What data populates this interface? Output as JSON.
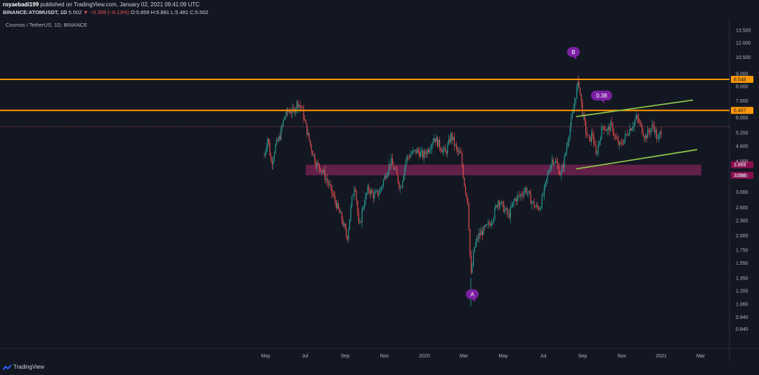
{
  "header": {
    "author": "royaebadi199",
    "published_text": "published on TradingView.com, January 02, 2021 09:41:09 UTC",
    "symbol": "BINANCE:ATOMUSDT, 1D",
    "last": "5.502",
    "change": "−0.359 (−6.13%)",
    "ohlc_o": "O:5.859",
    "ohlc_h": "H:5.881",
    "ohlc_l": "L:5.481",
    "ohlc_c": "C:5.502"
  },
  "chart_title": "Cosmos / TetherUS, 1D, BINANCE",
  "footer": {
    "brand": "TradingView"
  },
  "colors": {
    "background": "#131722",
    "up": "#26a69a",
    "down": "#ef5350",
    "resistance": "#ff9800",
    "zone": "#7e2456",
    "trend": "#8bc34a",
    "marker": "#7b1fa2"
  },
  "chart_data": {
    "type": "candlestick",
    "y_scale": "log",
    "ylim": [
      0.78,
      14.5
    ],
    "y_ticks": [
      "13.500",
      "12.000",
      "10.500",
      "9.000",
      "8.000",
      "7.000",
      "6.000",
      "5.200",
      "4.600",
      "4.000",
      "3.500",
      "3.000",
      "2.600",
      "2.300",
      "2.000",
      "1.750",
      "1.550",
      "1.350",
      "1.200",
      "1.060",
      "0.940",
      "0.840"
    ],
    "x_ticks": [
      "May",
      "Jul",
      "Sep",
      "Nov",
      "2020",
      "Mar",
      "May",
      "Jul",
      "Sep",
      "Nov",
      "2021",
      "Mar"
    ],
    "last_price": 5.502,
    "horizontal_levels": [
      {
        "value": 8.548,
        "label": "8.548"
      },
      {
        "value": 6.407,
        "label": "6.407"
      }
    ],
    "zone": {
      "low": 3.506,
      "high": 3.869,
      "labels": [
        "3.869",
        "3.506"
      ]
    },
    "annotations": [
      {
        "text": "B",
        "price": 8.8
      },
      {
        "text": "A",
        "price": 1.06
      },
      {
        "text": "0.38",
        "price": 6.35
      }
    ]
  }
}
